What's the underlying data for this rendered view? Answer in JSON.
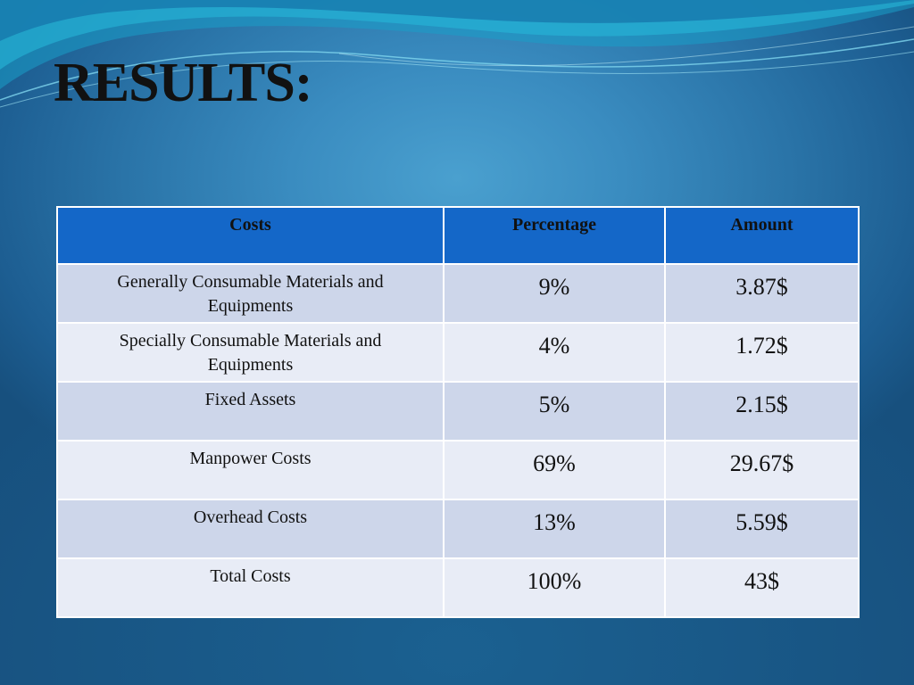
{
  "slide": {
    "title": "RESULTS:"
  },
  "table": {
    "headers": [
      "Costs",
      "Percentage",
      "Amount"
    ],
    "rows": [
      {
        "cost": "Generally Consumable Materials and Equipments",
        "percentage": "9%",
        "amount": "3.87$"
      },
      {
        "cost": "Specially Consumable Materials and Equipments",
        "percentage": "4%",
        "amount": "1.72$"
      },
      {
        "cost": "Fixed Assets",
        "percentage": "5%",
        "amount": "2.15$"
      },
      {
        "cost": "Manpower Costs",
        "percentage": "69%",
        "amount": "29.67$"
      },
      {
        "cost": "Overhead Costs",
        "percentage": "13%",
        "amount": "5.59$"
      },
      {
        "cost": "Total Costs",
        "percentage": "100%",
        "amount": "43$"
      }
    ]
  },
  "colors": {
    "header_fill": "#1467c8",
    "row_odd": "#cdd6ea",
    "row_even": "#e8ecf6",
    "background": "#2a74a8"
  }
}
